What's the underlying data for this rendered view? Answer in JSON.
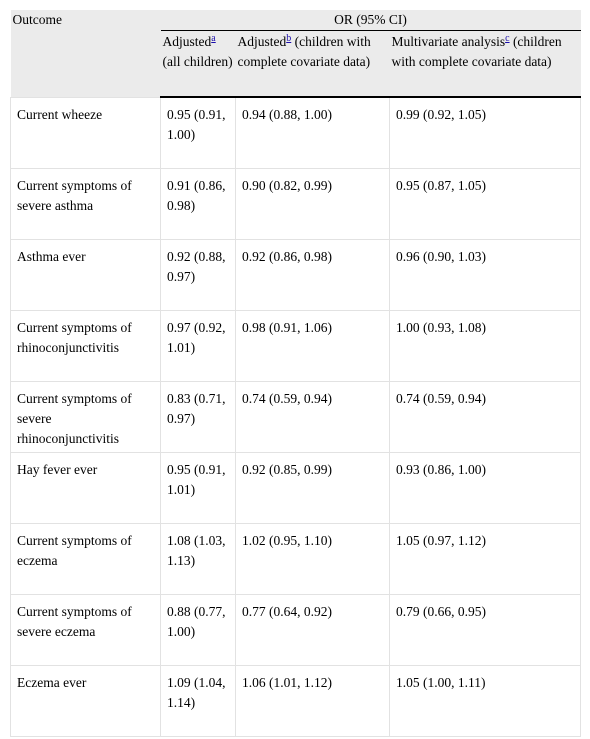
{
  "header": {
    "outcome": "Outcome",
    "group": "OR (95% CI)",
    "columns": [
      {
        "text": "Adjusted",
        "sup": "a",
        "rest": "(all children)"
      },
      {
        "text": "Adjusted",
        "sup": "b",
        "rest": "(children with complete covariate data)"
      },
      {
        "text": "Multivariate analysis",
        "sup": "c",
        "rest": "(children with complete covariate data)"
      }
    ]
  },
  "table": {
    "rows": [
      [
        "Current wheeze",
        "0.95 (0.91, 1.00)",
        "0.94 (0.88, 1.00)",
        "0.99 (0.92, 1.05)"
      ],
      [
        "Current symptoms of severe asthma",
        "0.91 (0.86, 0.98)",
        "0.90 (0.82, 0.99)",
        "0.95 (0.87, 1.05)"
      ],
      [
        "Asthma ever",
        "0.92 (0.88, 0.97)",
        "0.92 (0.86, 0.98)",
        "0.96 (0.90, 1.03)"
      ],
      [
        "Current symptoms of rhinoconjunctivitis",
        "0.97 (0.92, 1.01)",
        "0.98 (0.91, 1.06)",
        "1.00 (0.93, 1.08)"
      ],
      [
        "Current symptoms of severe rhinoconjunctivitis",
        "0.83 (0.71, 0.97)",
        "0.74 (0.59, 0.94)",
        "0.74 (0.59, 0.94)"
      ],
      [
        "Hay fever ever",
        "0.95 (0.91, 1.01)",
        "0.92 (0.85, 0.99)",
        "0.93 (0.86, 1.00)"
      ],
      [
        "Current symptoms of eczema",
        "1.08 (1.03, 1.13)",
        "1.02 (0.95, 1.10)",
        "1.05 (0.97, 1.12)"
      ],
      [
        "Current symptoms of severe eczema",
        "0.88 (0.77, 1.00)",
        "0.77 (0.64, 0.92)",
        "0.79 (0.66, 0.95)"
      ],
      [
        "Eczema ever",
        "1.09 (1.04, 1.14)",
        "1.06 (1.01, 1.12)",
        "1.05 (1.00, 1.11)"
      ]
    ]
  }
}
